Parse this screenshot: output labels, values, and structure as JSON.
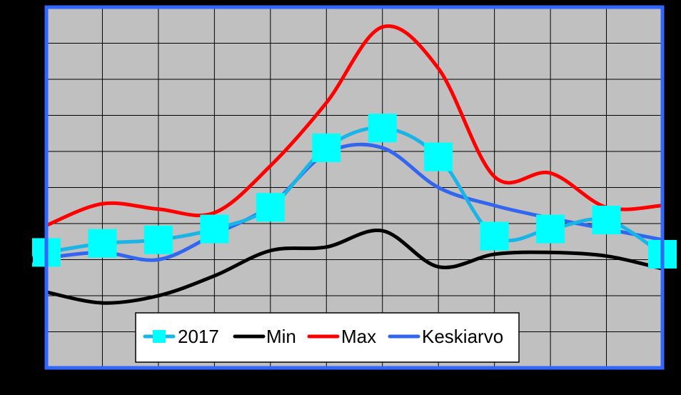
{
  "chart_data": {
    "type": "line",
    "title": "",
    "xlabel": "",
    "ylabel": "",
    "x": [
      1,
      2,
      3,
      4,
      5,
      6,
      7,
      8,
      9,
      10,
      11,
      12
    ],
    "xlim": [
      1,
      12
    ],
    "ylim": [
      0,
      10
    ],
    "y_tick_labels_visible": [
      "0"
    ],
    "grid": true,
    "legend": "bottom-center",
    "background_color": "#c0c0c0",
    "frame_color": "#3366ff",
    "series": [
      {
        "name": "2017",
        "color": "#19b5e6",
        "marker": "square",
        "marker_color": "#00ffff",
        "values": [
          3.2,
          3.45,
          3.55,
          3.85,
          4.45,
          6.1,
          6.65,
          5.85,
          3.65,
          3.85,
          4.1,
          3.15
        ]
      },
      {
        "name": "Min",
        "color": "#000000",
        "values": [
          2.1,
          1.8,
          2.0,
          2.55,
          3.25,
          3.35,
          3.8,
          2.8,
          3.15,
          3.2,
          3.1,
          2.75
        ]
      },
      {
        "name": "Max",
        "color": "#ff0000",
        "values": [
          3.95,
          4.55,
          4.4,
          4.3,
          5.6,
          7.35,
          9.45,
          8.3,
          5.3,
          5.4,
          4.45,
          4.5
        ]
      },
      {
        "name": "Keskiarvo",
        "color": "#3366ee",
        "values": [
          3.05,
          3.2,
          3.0,
          3.7,
          4.5,
          5.95,
          6.1,
          5.0,
          4.5,
          4.15,
          3.85,
          3.55
        ]
      }
    ]
  }
}
